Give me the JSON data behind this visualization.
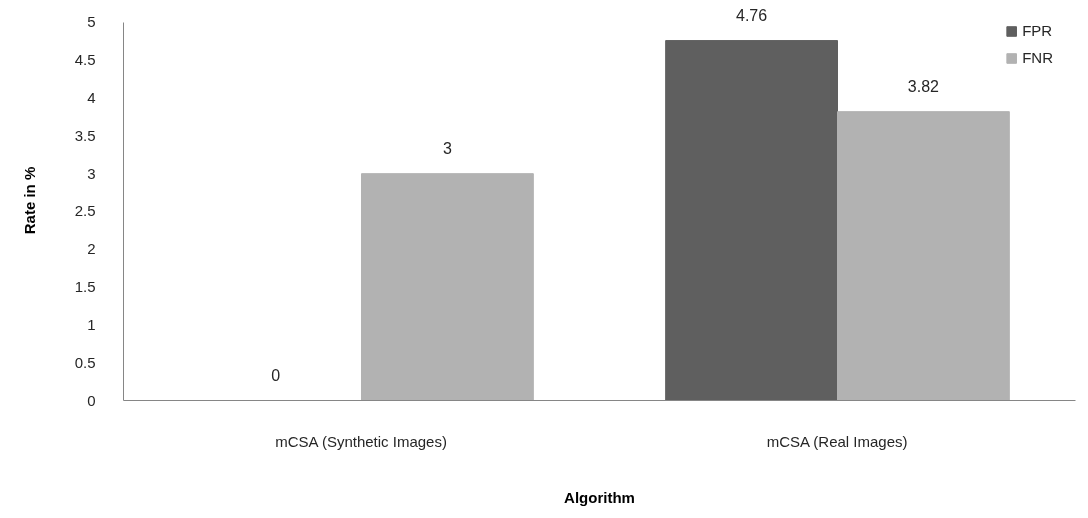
{
  "chart_data": {
    "type": "bar",
    "xlabel": "Algorithm",
    "ylabel": "Rate in %",
    "categories": [
      "mCSA (Synthetic Images)",
      "mCSA (Real Images)"
    ],
    "series": [
      {
        "name": "FPR",
        "color": "#5f5f5f",
        "values": [
          0,
          4.76
        ]
      },
      {
        "name": "FNR",
        "color": "#b2b2b2",
        "values": [
          3,
          3.82
        ]
      }
    ],
    "ylim": [
      0,
      5
    ],
    "yticks": [
      0,
      0.5,
      1,
      1.5,
      2,
      2.5,
      3,
      3.5,
      4,
      4.5,
      5
    ],
    "data_labels": true,
    "legend": "top right"
  }
}
